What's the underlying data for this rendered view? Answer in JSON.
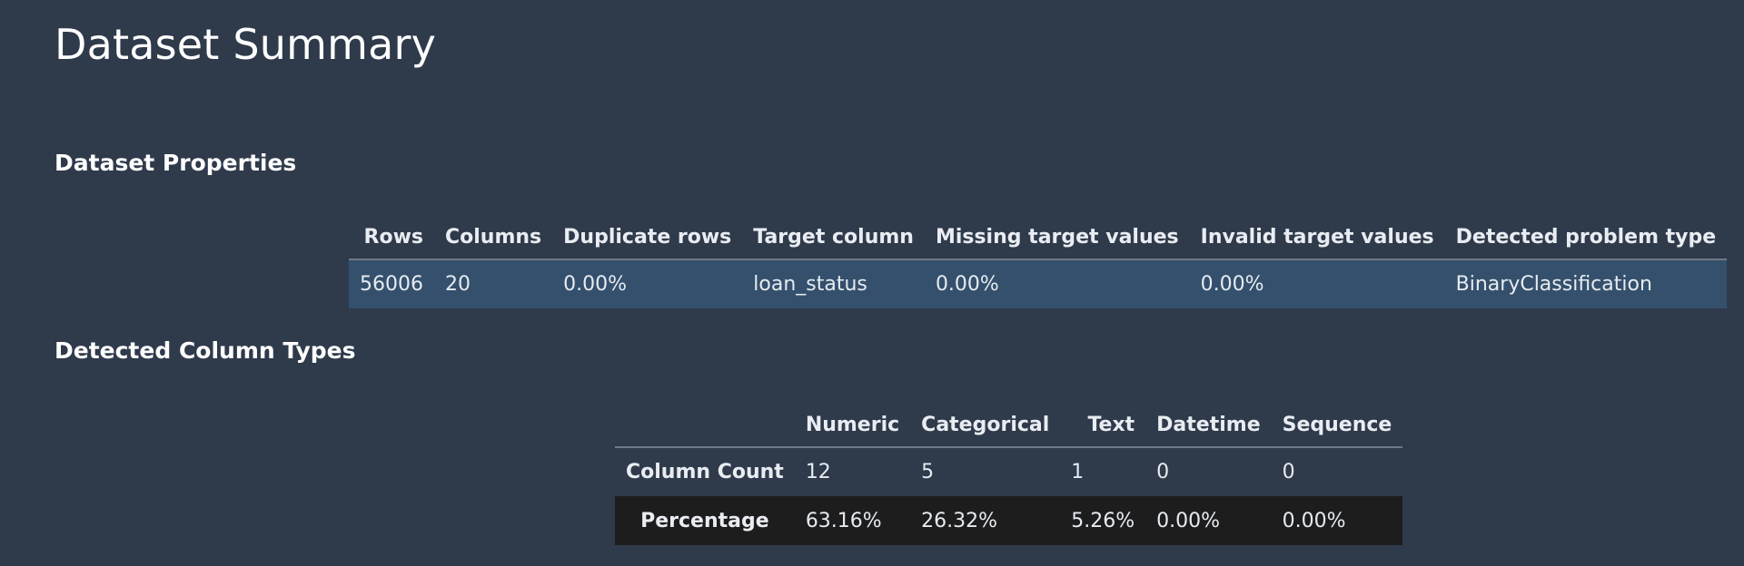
{
  "page": {
    "title": "Dataset Summary"
  },
  "dataset_properties": {
    "section_title": "Dataset Properties",
    "headers": [
      "Rows",
      "Columns",
      "Duplicate rows",
      "Target column",
      "Missing target values",
      "Invalid target values",
      "Detected problem type"
    ],
    "row": [
      "56006",
      "20",
      "0.00%",
      "loan_status",
      "0.00%",
      "0.00%",
      "BinaryClassification"
    ]
  },
  "column_types": {
    "section_title": "Detected Column Types",
    "headers": [
      "Numeric",
      "Categorical",
      "Text",
      "Datetime",
      "Sequence"
    ],
    "rows": [
      {
        "label": "Column Count",
        "values": [
          "12",
          "5",
          "1",
          "0",
          "0"
        ]
      },
      {
        "label": "Percentage",
        "values": [
          "63.16%",
          "26.32%",
          "5.26%",
          "0.00%",
          "0.00%"
        ]
      }
    ]
  },
  "colors": {
    "background": "#2f3a4b",
    "highlight_row": "#34506c",
    "dark_row": "#1d1d1d"
  }
}
